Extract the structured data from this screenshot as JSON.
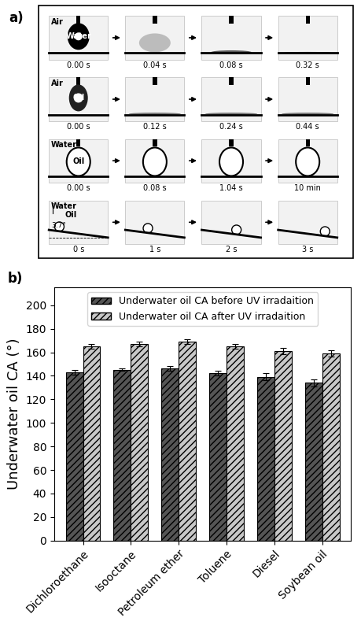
{
  "panel_a": {
    "label": "a)",
    "rows": [
      {
        "medium": "Air",
        "droplet": "Water",
        "times": [
          "0.00 s",
          "0.04 s",
          "0.08 s",
          "0.32 s"
        ]
      },
      {
        "medium": "Air",
        "droplet": "Oil",
        "times": [
          "0.00 s",
          "0.12 s",
          "0.24 s",
          "0.44 s"
        ]
      },
      {
        "medium": "Water",
        "droplet": "Oil",
        "times": [
          "0.00 s",
          "0.08 s",
          "1.04 s",
          "10 min"
        ]
      },
      {
        "medium": "Water",
        "droplet": "Oil",
        "angle": "3.7°",
        "times": [
          "0 s",
          "1 s",
          "2 s",
          "3 s"
        ]
      }
    ]
  },
  "chart_data": {
    "type": "bar",
    "panel_label": "b)",
    "categories": [
      "Dichloroethane",
      "Isooctane",
      "Petroleum ether",
      "Toluene",
      "Diesel",
      "Soybean oil"
    ],
    "series": [
      {
        "name": "Underwater oil CA before UV irradaition",
        "color": "#555555",
        "values": [
          143,
          145,
          146,
          142,
          139,
          134
        ],
        "errors": [
          2,
          1,
          2,
          2,
          3,
          3
        ]
      },
      {
        "name": "Underwater oil CA after UV irradaition",
        "color": "#c8c8c8",
        "values": [
          165,
          167,
          169,
          165,
          161,
          159
        ],
        "errors": [
          2,
          2,
          2,
          2,
          3,
          3
        ]
      }
    ],
    "y_label": "Underwater oil CA (°)",
    "ylim": [
      0,
      215
    ],
    "yticks": [
      0,
      20,
      40,
      60,
      80,
      100,
      120,
      140,
      160,
      180,
      200
    ],
    "legend": "upper center",
    "grid": false
  }
}
